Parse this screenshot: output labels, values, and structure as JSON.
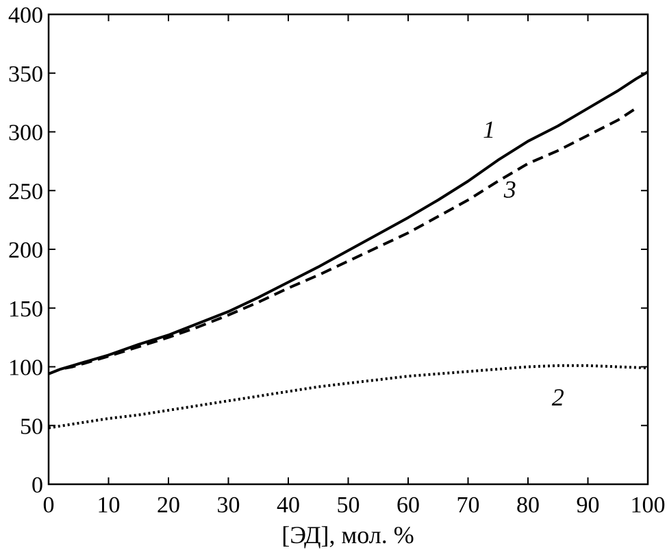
{
  "chart_data": {
    "type": "line",
    "title": "",
    "xlabel": "[ЭД], мол. %",
    "ylabel": "",
    "xlim": [
      0,
      100
    ],
    "ylim": [
      0,
      400
    ],
    "xticks": [
      0,
      10,
      20,
      30,
      40,
      50,
      60,
      70,
      80,
      90,
      100
    ],
    "yticks": [
      0,
      50,
      100,
      150,
      200,
      250,
      300,
      350,
      400
    ],
    "grid": false,
    "legend": "none",
    "series": [
      {
        "name": "1",
        "style": "solid",
        "x": [
          0,
          2,
          4,
          6,
          10,
          15,
          20,
          25,
          30,
          35,
          40,
          45,
          50,
          55,
          60,
          65,
          70,
          75,
          80,
          85,
          90,
          95,
          98,
          100
        ],
        "y": [
          94,
          98,
          101,
          104,
          110,
          119,
          127,
          137,
          147,
          159,
          172,
          185,
          199,
          213,
          227,
          242,
          258,
          276,
          292,
          305,
          320,
          335,
          345,
          351
        ]
      },
      {
        "name": "2",
        "style": "dotted",
        "x": [
          0,
          5,
          10,
          15,
          20,
          25,
          30,
          35,
          40,
          45,
          50,
          55,
          60,
          65,
          70,
          75,
          80,
          85,
          90,
          95,
          100
        ],
        "y": [
          48,
          52,
          56,
          59,
          63,
          67,
          71,
          75,
          79,
          83,
          86,
          89,
          92,
          94,
          96,
          98,
          100,
          101,
          101,
          100,
          99
        ]
      },
      {
        "name": "3",
        "style": "dashed",
        "x": [
          0,
          2,
          4,
          6,
          10,
          15,
          20,
          25,
          30,
          35,
          40,
          45,
          50,
          55,
          60,
          65,
          70,
          75,
          80,
          85,
          90,
          95,
          98
        ],
        "y": [
          94,
          98,
          100,
          103,
          109,
          117,
          125,
          134,
          144,
          155,
          167,
          178,
          190,
          202,
          214,
          228,
          242,
          258,
          273,
          284,
          297,
          310,
          320
        ]
      }
    ],
    "annotations": [
      {
        "text": "1",
        "x": 73.5,
        "y": 295
      },
      {
        "text": "3",
        "x": 77,
        "y": 244
      },
      {
        "text": "2",
        "x": 85,
        "y": 67
      }
    ]
  }
}
